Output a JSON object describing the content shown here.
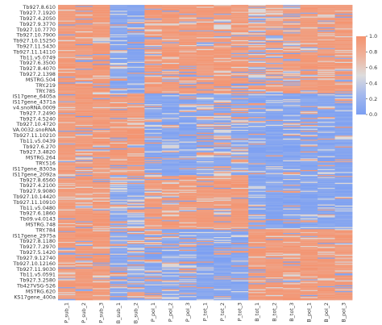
{
  "chart_data": {
    "type": "heatmap",
    "title": "",
    "xlabel": "",
    "ylabel": "",
    "columns": [
      "P_sub_1",
      "P_sub_2",
      "P_sub_3",
      "B_sub_1",
      "B_sub_2",
      "P_pol_1",
      "P_pol_2",
      "P_pol_3",
      "P_tot_1",
      "P_tot_2",
      "P_tot_3",
      "B_tot_1",
      "B_tot_2",
      "B_tot_3",
      "B_pol_1",
      "B_pol_2",
      "B_pol_3"
    ],
    "row_labels": [
      "Tb927.8.610",
      "Tb927.7.1920",
      "Tb927.4.2050",
      "Tb927.9.3770",
      "Tb927.10.7770",
      "Tb927.10.7900",
      "Tb927.10.15250",
      "Tb927.11.5430",
      "Tb927.11.14110",
      "Tb11.v5.0749",
      "Tb927.6.3500",
      "Tb927.8.4070",
      "Tb927.2.1398",
      "MSTRG.504",
      "TRY.219",
      "TRY.785",
      "IS17gene_6405a",
      "IS17gene_4371a",
      "v4.snoRNA.0009",
      "Tb927.7.2490",
      "Tb927.4.5240",
      "Tb927.10.4720",
      "VA.0032.snoRNA",
      "Tb927.11.10210",
      "Tb11.v5.0439",
      "Tb927.6.270",
      "Tb927.3.4820",
      "MSTRG.264",
      "TRY.516",
      "IS17gene_8303a",
      "IS17gene_2092a",
      "Tb927.8.6560",
      "Tb927.4.2100",
      "Tb927.9.9080",
      "Tb927.10.14420",
      "Tb927.11.10910",
      "Tb11.v5.0480",
      "Tb927.6.1860",
      "Tb09.v4.0143",
      "MSTRG.748",
      "TRY.784",
      "IS17gene_2975a",
      "Tb927.8.1180",
      "Tb927.7.2970",
      "Tb927.5.1420",
      "Tb927.9.12740",
      "Tb927.10.12160",
      "Tb927.11.9030",
      "Tb11.v5.0591",
      "Tb927.3.2580",
      "Tb427VSG-526",
      "MSTRG.620",
      "KS17gene_400a"
    ],
    "n_rows": 300,
    "blocks": [
      {
        "rows": [
          0,
          0.3
        ],
        "pattern": [
          "hi",
          "hi",
          "hi",
          "lo",
          "lo",
          "hi",
          "hi",
          "hi",
          "hi",
          "hi",
          "hi",
          "mixh",
          "mixh",
          "mixh",
          "hi",
          "hi",
          "hi"
        ]
      },
      {
        "rows": [
          0.3,
          0.58
        ],
        "pattern": [
          "hi",
          "hi",
          "hi",
          "hi",
          "hi",
          "lo",
          "lo",
          "lo",
          "mixl",
          "mixl",
          "mixl",
          "lo",
          "lo",
          "lo",
          "lo",
          "lo",
          "lo"
        ]
      },
      {
        "rows": [
          0.58,
          0.76
        ],
        "pattern": [
          "hi",
          "hi",
          "hi",
          "mixl",
          "mixl",
          "hi",
          "hi",
          "hi",
          "hi",
          "hi",
          "hi",
          "lo",
          "lo",
          "lo",
          "lo",
          "lo",
          "lo"
        ]
      },
      {
        "rows": [
          0.76,
          1.0
        ],
        "pattern": [
          "hi",
          "hi",
          "hi",
          "mixl",
          "mixl",
          "mixl",
          "mixl",
          "mixl",
          "lo",
          "lo",
          "lo",
          "hi",
          "hi",
          "hi",
          "hi",
          "hi",
          "hi"
        ]
      }
    ],
    "colorscale": {
      "min": 0.0,
      "max": 1.0,
      "low_color": "#7b9ff2",
      "mid_color": "#dddcdc",
      "high_color": "#f4936f"
    },
    "colorbar_ticks": [
      "0.0",
      "0.2",
      "0.4",
      "0.6",
      "0.8",
      "1.0"
    ]
  }
}
